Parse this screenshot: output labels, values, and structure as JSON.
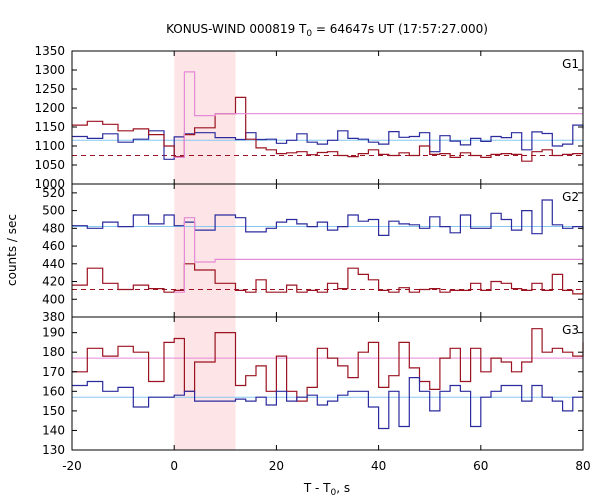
{
  "chart_data": {
    "type": "line",
    "title": "KONUS-WIND 000819 T",
    "title_subscript": "0",
    "title_rest": " = 64647s UT (17:57:27.000)",
    "xlabel": "T - T",
    "xlabel_subscript": "0",
    "xlabel_rest": ", s",
    "ylabel": "counts / sec",
    "xlim": [
      -20,
      80
    ],
    "xticks": [
      -20,
      0,
      20,
      40,
      60,
      80
    ],
    "highlight_interval": [
      0,
      12
    ],
    "grid": false,
    "colors": {
      "blue": "#2b2b9e",
      "red": "#9b1220",
      "pink": "#e58ad6",
      "lightblue": "#87c8ef",
      "shade": "#fde4e6"
    },
    "panels": [
      {
        "label": "G1",
        "ylim": [
          1000,
          1350
        ],
        "yticks": [
          1000,
          1050,
          1100,
          1150,
          1200,
          1250,
          1300,
          1350
        ],
        "series": [
          {
            "color": "blue",
            "x": [
              -20,
              -17,
              -14,
              -11,
              -8,
              -5,
              -2,
              0,
              2,
              4,
              8,
              12,
              14,
              16,
              18,
              20,
              22,
              24,
              26,
              28,
              30,
              32,
              34,
              36,
              38,
              40,
              42,
              44,
              46,
              48,
              50,
              52,
              54,
              56,
              58,
              60,
              62,
              64,
              66,
              68,
              70,
              72,
              74,
              76,
              78,
              80
            ],
            "values": [
              1125,
              1120,
              1132,
              1110,
              1118,
              1140,
              1065,
              1124,
              1132,
              1135,
              1122,
              1117,
              1135,
              1117,
              1118,
              1107,
              1115,
              1132,
              1110,
              1105,
              1115,
              1140,
              1120,
              1118,
              1110,
              1105,
              1138,
              1123,
              1125,
              1135,
              1085,
              1127,
              1113,
              1103,
              1120,
              1112,
              1125,
              1122,
              1135,
              1090,
              1137,
              1133,
              1100,
              1105,
              1155,
              1145
            ]
          },
          {
            "color": "red",
            "x": [
              -20,
              -17,
              -14,
              -11,
              -8,
              -5,
              -2,
              0,
              2,
              4,
              8,
              12,
              14,
              16,
              18,
              20,
              22,
              24,
              26,
              28,
              30,
              32,
              34,
              36,
              38,
              40,
              42,
              44,
              46,
              48,
              50,
              52,
              54,
              56,
              58,
              60,
              62,
              64,
              66,
              68,
              70,
              72,
              74,
              76,
              78,
              80
            ],
            "values": [
              1155,
              1165,
              1157,
              1140,
              1145,
              1130,
              1100,
              1072,
              1130,
              1148,
              1185,
              1228,
              1118,
              1095,
              1090,
              1080,
              1082,
              1085,
              1077,
              1083,
              1085,
              1075,
              1072,
              1080,
              1090,
              1078,
              1075,
              1082,
              1075,
              1100,
              1078,
              1080,
              1070,
              1082,
              1075,
              1070,
              1078,
              1080,
              1078,
              1060,
              1085,
              1090,
              1075,
              1078,
              1080,
              1080
            ]
          },
          {
            "color": "pink",
            "x": [
              0,
              2,
              4,
              8,
              12
            ],
            "values": [
              1070,
              1295,
              1180,
              1185,
              1185
            ]
          }
        ],
        "reference_lines": [
          {
            "color": "lightblue",
            "value": 1115,
            "dashed": false
          },
          {
            "color": "red",
            "value": 1075,
            "dashed": true
          }
        ]
      },
      {
        "label": "G2",
        "ylim": [
          380,
          530
        ],
        "yticks": [
          380,
          400,
          420,
          440,
          460,
          480,
          500,
          520
        ],
        "series": [
          {
            "color": "blue",
            "x": [
              -20,
              -17,
              -14,
              -11,
              -8,
              -5,
              -2,
              0,
              2,
              4,
              8,
              12,
              14,
              16,
              18,
              20,
              22,
              24,
              26,
              28,
              30,
              32,
              34,
              36,
              38,
              40,
              42,
              44,
              46,
              48,
              50,
              52,
              54,
              56,
              58,
              60,
              62,
              64,
              66,
              68,
              70,
              72,
              74,
              76,
              78,
              80
            ],
            "values": [
              483,
              480,
              487,
              482,
              495,
              485,
              495,
              483,
              487,
              478,
              495,
              492,
              476,
              476,
              480,
              487,
              490,
              485,
              482,
              487,
              478,
              482,
              495,
              488,
              490,
              472,
              488,
              485,
              484,
              480,
              493,
              482,
              475,
              495,
              480,
              480,
              497,
              490,
              478,
              500,
              474,
              512,
              484,
              480,
              482,
              478
            ]
          },
          {
            "color": "red",
            "x": [
              -20,
              -17,
              -14,
              -11,
              -8,
              -5,
              -2,
              0,
              2,
              4,
              8,
              12,
              14,
              16,
              18,
              20,
              22,
              24,
              26,
              28,
              30,
              32,
              34,
              36,
              38,
              40,
              42,
              44,
              46,
              48,
              50,
              52,
              54,
              56,
              58,
              60,
              62,
              64,
              66,
              68,
              70,
              72,
              74,
              76,
              78,
              80
            ],
            "values": [
              416,
              435,
              418,
              411,
              416,
              412,
              408,
              410,
              440,
              433,
              418,
              410,
              408,
              422,
              408,
              408,
              416,
              408,
              410,
              408,
              418,
              412,
              435,
              428,
              422,
              410,
              408,
              413,
              408,
              411,
              412,
              408,
              410,
              410,
              418,
              410,
              420,
              418,
              412,
              410,
              418,
              410,
              428,
              410,
              406,
              410
            ]
          },
          {
            "color": "pink",
            "x": [
              0,
              2,
              4,
              8,
              12
            ],
            "values": [
              408,
              492,
              442,
              445,
              445
            ]
          }
        ],
        "reference_lines": [
          {
            "color": "lightblue",
            "value": 482,
            "dashed": false
          },
          {
            "color": "red",
            "value": 411,
            "dashed": true
          }
        ]
      },
      {
        "label": "G3",
        "ylim": [
          130,
          198
        ],
        "yticks": [
          130,
          140,
          150,
          160,
          170,
          180,
          190
        ],
        "series": [
          {
            "color": "red",
            "x": [
              -20,
              -17,
              -14,
              -11,
              -8,
              -5,
              -2,
              0,
              2,
              4,
              8,
              12,
              14,
              16,
              18,
              20,
              22,
              24,
              26,
              28,
              30,
              32,
              34,
              36,
              38,
              40,
              42,
              44,
              46,
              48,
              50,
              52,
              54,
              56,
              58,
              60,
              62,
              64,
              66,
              68,
              70,
              72,
              74,
              76,
              78,
              80
            ],
            "values": [
              170,
              182,
              178,
              183,
              180,
              165,
              185,
              187,
              160,
              175,
              190,
              163,
              168,
              173,
              160,
              178,
              160,
              155,
              162,
              182,
              177,
              173,
              167,
              180,
              185,
              162,
              168,
              185,
              172,
              165,
              161,
              177,
              182,
              165,
              182,
              170,
              177,
              175,
              170,
              175,
              192,
              180,
              182,
              180,
              178,
              185
            ]
          },
          {
            "color": "blue",
            "x": [
              -20,
              -17,
              -14,
              -11,
              -8,
              -5,
              -2,
              0,
              2,
              4,
              8,
              12,
              14,
              16,
              18,
              20,
              22,
              24,
              26,
              28,
              30,
              32,
              34,
              36,
              38,
              40,
              42,
              44,
              46,
              48,
              50,
              52,
              54,
              56,
              58,
              60,
              62,
              64,
              66,
              68,
              70,
              72,
              74,
              76,
              78,
              80
            ],
            "values": [
              163,
              165,
              160,
              162,
              152,
              157,
              157,
              158,
              160,
              155,
              155,
              156,
              155,
              157,
              153,
              160,
              155,
              157,
              158,
              153,
              155,
              158,
              160,
              160,
              152,
              141,
              160,
              142,
              167,
              160,
              150,
              160,
              163,
              160,
              142,
              157,
              160,
              163,
              163,
              155,
              163,
              157,
              155,
              150,
              157,
              157
            ]
          }
        ],
        "reference_lines": [
          {
            "color": "pink",
            "value": 177,
            "dashed": false
          },
          {
            "color": "lightblue",
            "value": 157,
            "dashed": false
          }
        ]
      }
    ]
  }
}
